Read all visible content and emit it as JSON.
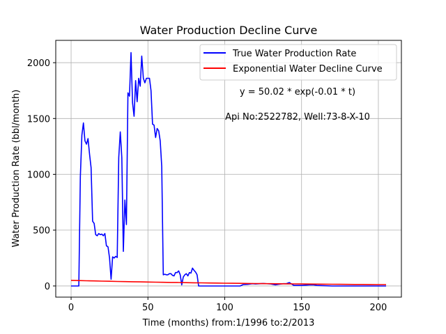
{
  "chart_data": {
    "type": "line",
    "title": "Water Production Decline Curve",
    "xlabel": "Time (months) from:1/1996 to:2/2013",
    "ylabel": "Water Production Rate (bbl/month)",
    "xlim": [
      -10,
      215
    ],
    "ylim": [
      -100,
      2200
    ],
    "xticks": [
      0,
      50,
      100,
      150,
      200
    ],
    "yticks": [
      0,
      500,
      1000,
      1500,
      2000
    ],
    "grid": true,
    "legend_position": "top-right",
    "annotations": [
      "y = 50.02 * exp(-0.01 * t)",
      "Api No:2522782, Well:73-8-X-10"
    ],
    "series": [
      {
        "name": "True Water Production Rate",
        "color": "#0000ff",
        "x": [
          0,
          2,
          4,
          5,
          6,
          7,
          8,
          9,
          10,
          11,
          12,
          13,
          14,
          15,
          16,
          17,
          18,
          19,
          20,
          21,
          22,
          23,
          24,
          25,
          26,
          27,
          28,
          29,
          30,
          31,
          32,
          33,
          34,
          35,
          36,
          37,
          38,
          39,
          40,
          41,
          42,
          43,
          44,
          45,
          46,
          47,
          48,
          49,
          50,
          51,
          52,
          53,
          54,
          55,
          56,
          57,
          58,
          59,
          60,
          61,
          62,
          63,
          64,
          65,
          66,
          67,
          68,
          69,
          70,
          71,
          72,
          73,
          74,
          75,
          76,
          77,
          78,
          79,
          80,
          81,
          82,
          83,
          84,
          85,
          86,
          90,
          95,
          100,
          105,
          110,
          112,
          115,
          118,
          120,
          125,
          130,
          133,
          135,
          138,
          140,
          142,
          145,
          150,
          155,
          158,
          160,
          170,
          180,
          190,
          200,
          205
        ],
        "y": [
          0,
          0,
          0,
          0,
          980,
          1350,
          1460,
          1300,
          1270,
          1320,
          1180,
          1060,
          580,
          560,
          460,
          450,
          470,
          460,
          465,
          450,
          470,
          360,
          350,
          250,
          60,
          260,
          250,
          265,
          255,
          1150,
          1380,
          1150,
          310,
          770,
          550,
          1730,
          1700,
          2090,
          1640,
          1520,
          1840,
          1650,
          1860,
          1790,
          2060,
          1860,
          1820,
          1860,
          1860,
          1860,
          1750,
          1450,
          1440,
          1330,
          1410,
          1390,
          1300,
          1070,
          100,
          105,
          100,
          100,
          110,
          110,
          95,
          90,
          120,
          120,
          135,
          100,
          10,
          80,
          100,
          110,
          90,
          120,
          115,
          160,
          140,
          125,
          100,
          0,
          0,
          0,
          0,
          0,
          0,
          0,
          0,
          0,
          12,
          15,
          20,
          18,
          22,
          18,
          10,
          15,
          20,
          20,
          30,
          5,
          5,
          10,
          10,
          5,
          0,
          0,
          0,
          0,
          0
        ]
      },
      {
        "name": "Exponential Water Decline Curve",
        "color": "#ff0000",
        "a": 50.02,
        "b": 0.007,
        "x_range": [
          0,
          205
        ]
      }
    ]
  }
}
